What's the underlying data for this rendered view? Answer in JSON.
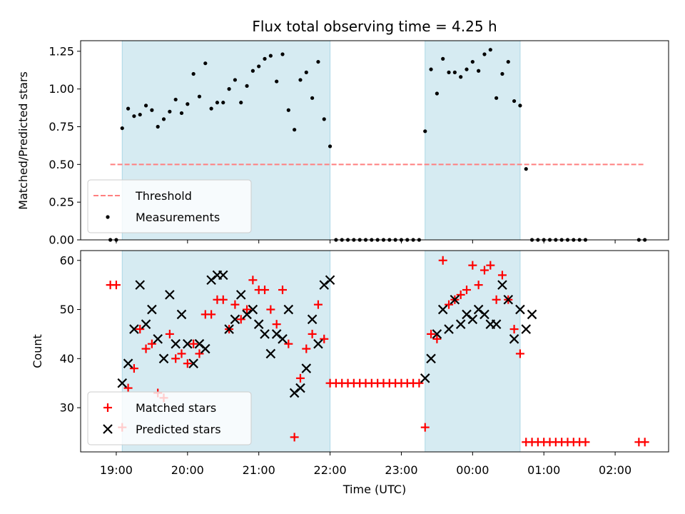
{
  "chart_data": {
    "title": "Flux total observing time = 4.25 h",
    "xlabel": "Time (UTC)",
    "x_ticks": [
      "19:00",
      "20:00",
      "21:00",
      "22:00",
      "23:00",
      "00:00",
      "01:00",
      "02:00"
    ],
    "x_range": [
      "18:30",
      "02:45"
    ],
    "shaded_intervals": [
      [
        "19:05",
        "22:00"
      ],
      [
        "23:20",
        "00:40"
      ]
    ],
    "shade_color": "#add8e6",
    "panels": [
      {
        "type": "scatter",
        "ylabel": "Matched/Predicted stars",
        "ylim": [
          0,
          1.32
        ],
        "y_ticks": [
          "0.00",
          "0.25",
          "0.50",
          "0.75",
          "1.00",
          "1.25"
        ],
        "legend_position": "lower-left",
        "threshold": {
          "name": "Threshold",
          "value": 0.5,
          "x": [
            "18:55",
            "02:25"
          ],
          "color": "#ff7f7f"
        },
        "series": [
          {
            "name": "Measurements",
            "color": "#000000",
            "marker": "dot",
            "points": [
              [
                "18:55",
                0
              ],
              [
                "19:00",
                0
              ],
              [
                "19:05",
                0.74
              ],
              [
                "19:10",
                0.87
              ],
              [
                "19:15",
                0.82
              ],
              [
                "19:20",
                0.83
              ],
              [
                "19:25",
                0.89
              ],
              [
                "19:30",
                0.86
              ],
              [
                "19:35",
                0.75
              ],
              [
                "19:40",
                0.8
              ],
              [
                "19:45",
                0.85
              ],
              [
                "19:50",
                0.93
              ],
              [
                "19:55",
                0.84
              ],
              [
                "20:00",
                0.9
              ],
              [
                "20:05",
                1.1
              ],
              [
                "20:10",
                0.95
              ],
              [
                "20:15",
                1.17
              ],
              [
                "20:20",
                0.87
              ],
              [
                "20:25",
                0.91
              ],
              [
                "20:30",
                0.91
              ],
              [
                "20:35",
                1.0
              ],
              [
                "20:40",
                1.06
              ],
              [
                "20:45",
                0.91
              ],
              [
                "20:50",
                1.02
              ],
              [
                "20:55",
                1.12
              ],
              [
                "21:00",
                1.15
              ],
              [
                "21:05",
                1.2
              ],
              [
                "21:10",
                1.22
              ],
              [
                "21:15",
                1.05
              ],
              [
                "21:20",
                1.23
              ],
              [
                "21:25",
                0.86
              ],
              [
                "21:30",
                0.73
              ],
              [
                "21:35",
                1.06
              ],
              [
                "21:40",
                1.11
              ],
              [
                "21:45",
                0.94
              ],
              [
                "21:50",
                1.18
              ],
              [
                "21:55",
                0.8
              ],
              [
                "22:00",
                0.62
              ],
              [
                "22:05",
                0
              ],
              [
                "22:10",
                0
              ],
              [
                "22:15",
                0
              ],
              [
                "22:20",
                0
              ],
              [
                "22:25",
                0
              ],
              [
                "22:30",
                0
              ],
              [
                "22:35",
                0
              ],
              [
                "22:40",
                0
              ],
              [
                "22:45",
                0
              ],
              [
                "22:50",
                0
              ],
              [
                "22:55",
                0
              ],
              [
                "23:00",
                0
              ],
              [
                "23:05",
                0
              ],
              [
                "23:10",
                0
              ],
              [
                "23:15",
                0
              ],
              [
                "23:20",
                0.72
              ],
              [
                "23:25",
                1.13
              ],
              [
                "23:30",
                0.97
              ],
              [
                "23:35",
                1.2
              ],
              [
                "23:40",
                1.11
              ],
              [
                "23:45",
                1.11
              ],
              [
                "23:50",
                1.08
              ],
              [
                "23:55",
                1.13
              ],
              [
                "00:00",
                1.18
              ],
              [
                "00:05",
                1.12
              ],
              [
                "00:10",
                1.23
              ],
              [
                "00:15",
                1.26
              ],
              [
                "00:20",
                0.94
              ],
              [
                "00:25",
                1.1
              ],
              [
                "00:30",
                1.18
              ],
              [
                "00:35",
                0.92
              ],
              [
                "00:40",
                0.89
              ],
              [
                "00:45",
                0.47
              ],
              [
                "00:50",
                0
              ],
              [
                "00:55",
                0
              ],
              [
                "01:00",
                0
              ],
              [
                "01:05",
                0
              ],
              [
                "01:10",
                0
              ],
              [
                "01:15",
                0
              ],
              [
                "01:20",
                0
              ],
              [
                "01:25",
                0
              ],
              [
                "01:30",
                0
              ],
              [
                "01:35",
                0
              ],
              [
                "02:20",
                0
              ],
              [
                "02:25",
                0
              ]
            ]
          }
        ]
      },
      {
        "type": "scatter",
        "ylabel": "Count",
        "ylim": [
          21,
          62
        ],
        "y_ticks": [
          "30",
          "40",
          "50",
          "60"
        ],
        "legend_position": "lower-left",
        "series": [
          {
            "name": "Matched stars",
            "color": "#ff0000",
            "marker": "plus",
            "points": [
              [
                "18:55",
                55
              ],
              [
                "19:00",
                55
              ],
              [
                "19:05",
                26
              ],
              [
                "19:10",
                34
              ],
              [
                "19:15",
                38
              ],
              [
                "19:20",
                46
              ],
              [
                "19:25",
                42
              ],
              [
                "19:30",
                43
              ],
              [
                "19:35",
                33
              ],
              [
                "19:40",
                32
              ],
              [
                "19:45",
                45
              ],
              [
                "19:50",
                40
              ],
              [
                "19:55",
                41
              ],
              [
                "20:00",
                39
              ],
              [
                "20:05",
                43
              ],
              [
                "20:10",
                41
              ],
              [
                "20:15",
                49
              ],
              [
                "20:20",
                49
              ],
              [
                "20:25",
                52
              ],
              [
                "20:30",
                52
              ],
              [
                "20:35",
                46
              ],
              [
                "20:40",
                51
              ],
              [
                "20:45",
                48
              ],
              [
                "20:50",
                50
              ],
              [
                "20:55",
                56
              ],
              [
                "21:00",
                54
              ],
              [
                "21:05",
                54
              ],
              [
                "21:10",
                50
              ],
              [
                "21:15",
                47
              ],
              [
                "21:20",
                54
              ],
              [
                "21:25",
                43
              ],
              [
                "21:30",
                24
              ],
              [
                "21:35",
                36
              ],
              [
                "21:40",
                42
              ],
              [
                "21:45",
                45
              ],
              [
                "21:50",
                51
              ],
              [
                "21:55",
                44
              ],
              [
                "22:00",
                35
              ],
              [
                "22:05",
                35
              ],
              [
                "22:10",
                35
              ],
              [
                "22:15",
                35
              ],
              [
                "22:20",
                35
              ],
              [
                "22:25",
                35
              ],
              [
                "22:30",
                35
              ],
              [
                "22:35",
                35
              ],
              [
                "22:40",
                35
              ],
              [
                "22:45",
                35
              ],
              [
                "22:50",
                35
              ],
              [
                "22:55",
                35
              ],
              [
                "23:00",
                35
              ],
              [
                "23:05",
                35
              ],
              [
                "23:10",
                35
              ],
              [
                "23:15",
                35
              ],
              [
                "23:20",
                26
              ],
              [
                "23:25",
                45
              ],
              [
                "23:30",
                44
              ],
              [
                "23:35",
                60
              ],
              [
                "23:40",
                51
              ],
              [
                "23:45",
                52
              ],
              [
                "23:50",
                53
              ],
              [
                "23:55",
                54
              ],
              [
                "00:00",
                59
              ],
              [
                "00:05",
                55
              ],
              [
                "00:10",
                58
              ],
              [
                "00:15",
                59
              ],
              [
                "00:20",
                52
              ],
              [
                "00:25",
                57
              ],
              [
                "00:30",
                52
              ],
              [
                "00:35",
                46
              ],
              [
                "00:40",
                41
              ],
              [
                "00:45",
                23
              ],
              [
                "00:50",
                23
              ],
              [
                "00:55",
                23
              ],
              [
                "01:00",
                23
              ],
              [
                "01:05",
                23
              ],
              [
                "01:10",
                23
              ],
              [
                "01:15",
                23
              ],
              [
                "01:20",
                23
              ],
              [
                "01:25",
                23
              ],
              [
                "01:30",
                23
              ],
              [
                "01:35",
                23
              ],
              [
                "02:20",
                23
              ],
              [
                "02:25",
                23
              ]
            ]
          },
          {
            "name": "Predicted stars",
            "color": "#000000",
            "marker": "x",
            "points": [
              [
                "19:05",
                35
              ],
              [
                "19:10",
                39
              ],
              [
                "19:15",
                46
              ],
              [
                "19:20",
                55
              ],
              [
                "19:25",
                47
              ],
              [
                "19:30",
                50
              ],
              [
                "19:35",
                44
              ],
              [
                "19:40",
                40
              ],
              [
                "19:45",
                53
              ],
              [
                "19:50",
                43
              ],
              [
                "19:55",
                49
              ],
              [
                "20:00",
                43
              ],
              [
                "20:05",
                39
              ],
              [
                "20:10",
                43
              ],
              [
                "20:15",
                42
              ],
              [
                "20:20",
                56
              ],
              [
                "20:25",
                57
              ],
              [
                "20:30",
                57
              ],
              [
                "20:35",
                46
              ],
              [
                "20:40",
                48
              ],
              [
                "20:45",
                53
              ],
              [
                "20:50",
                49
              ],
              [
                "20:55",
                50
              ],
              [
                "21:00",
                47
              ],
              [
                "21:05",
                45
              ],
              [
                "21:10",
                41
              ],
              [
                "21:15",
                45
              ],
              [
                "21:20",
                44
              ],
              [
                "21:25",
                50
              ],
              [
                "21:30",
                33
              ],
              [
                "21:35",
                34
              ],
              [
                "21:40",
                38
              ],
              [
                "21:45",
                48
              ],
              [
                "21:50",
                43
              ],
              [
                "21:55",
                55
              ],
              [
                "22:00",
                56
              ],
              [
                "23:20",
                36
              ],
              [
                "23:25",
                40
              ],
              [
                "23:30",
                45
              ],
              [
                "23:35",
                50
              ],
              [
                "23:40",
                46
              ],
              [
                "23:45",
                52
              ],
              [
                "23:50",
                47
              ],
              [
                "23:55",
                49
              ],
              [
                "00:00",
                48
              ],
              [
                "00:05",
                50
              ],
              [
                "00:10",
                49
              ],
              [
                "00:15",
                47
              ],
              [
                "00:20",
                47
              ],
              [
                "00:25",
                55
              ],
              [
                "00:30",
                52
              ],
              [
                "00:35",
                44
              ],
              [
                "00:40",
                50
              ],
              [
                "00:45",
                46
              ],
              [
                "00:50",
                49
              ]
            ]
          }
        ]
      }
    ]
  }
}
